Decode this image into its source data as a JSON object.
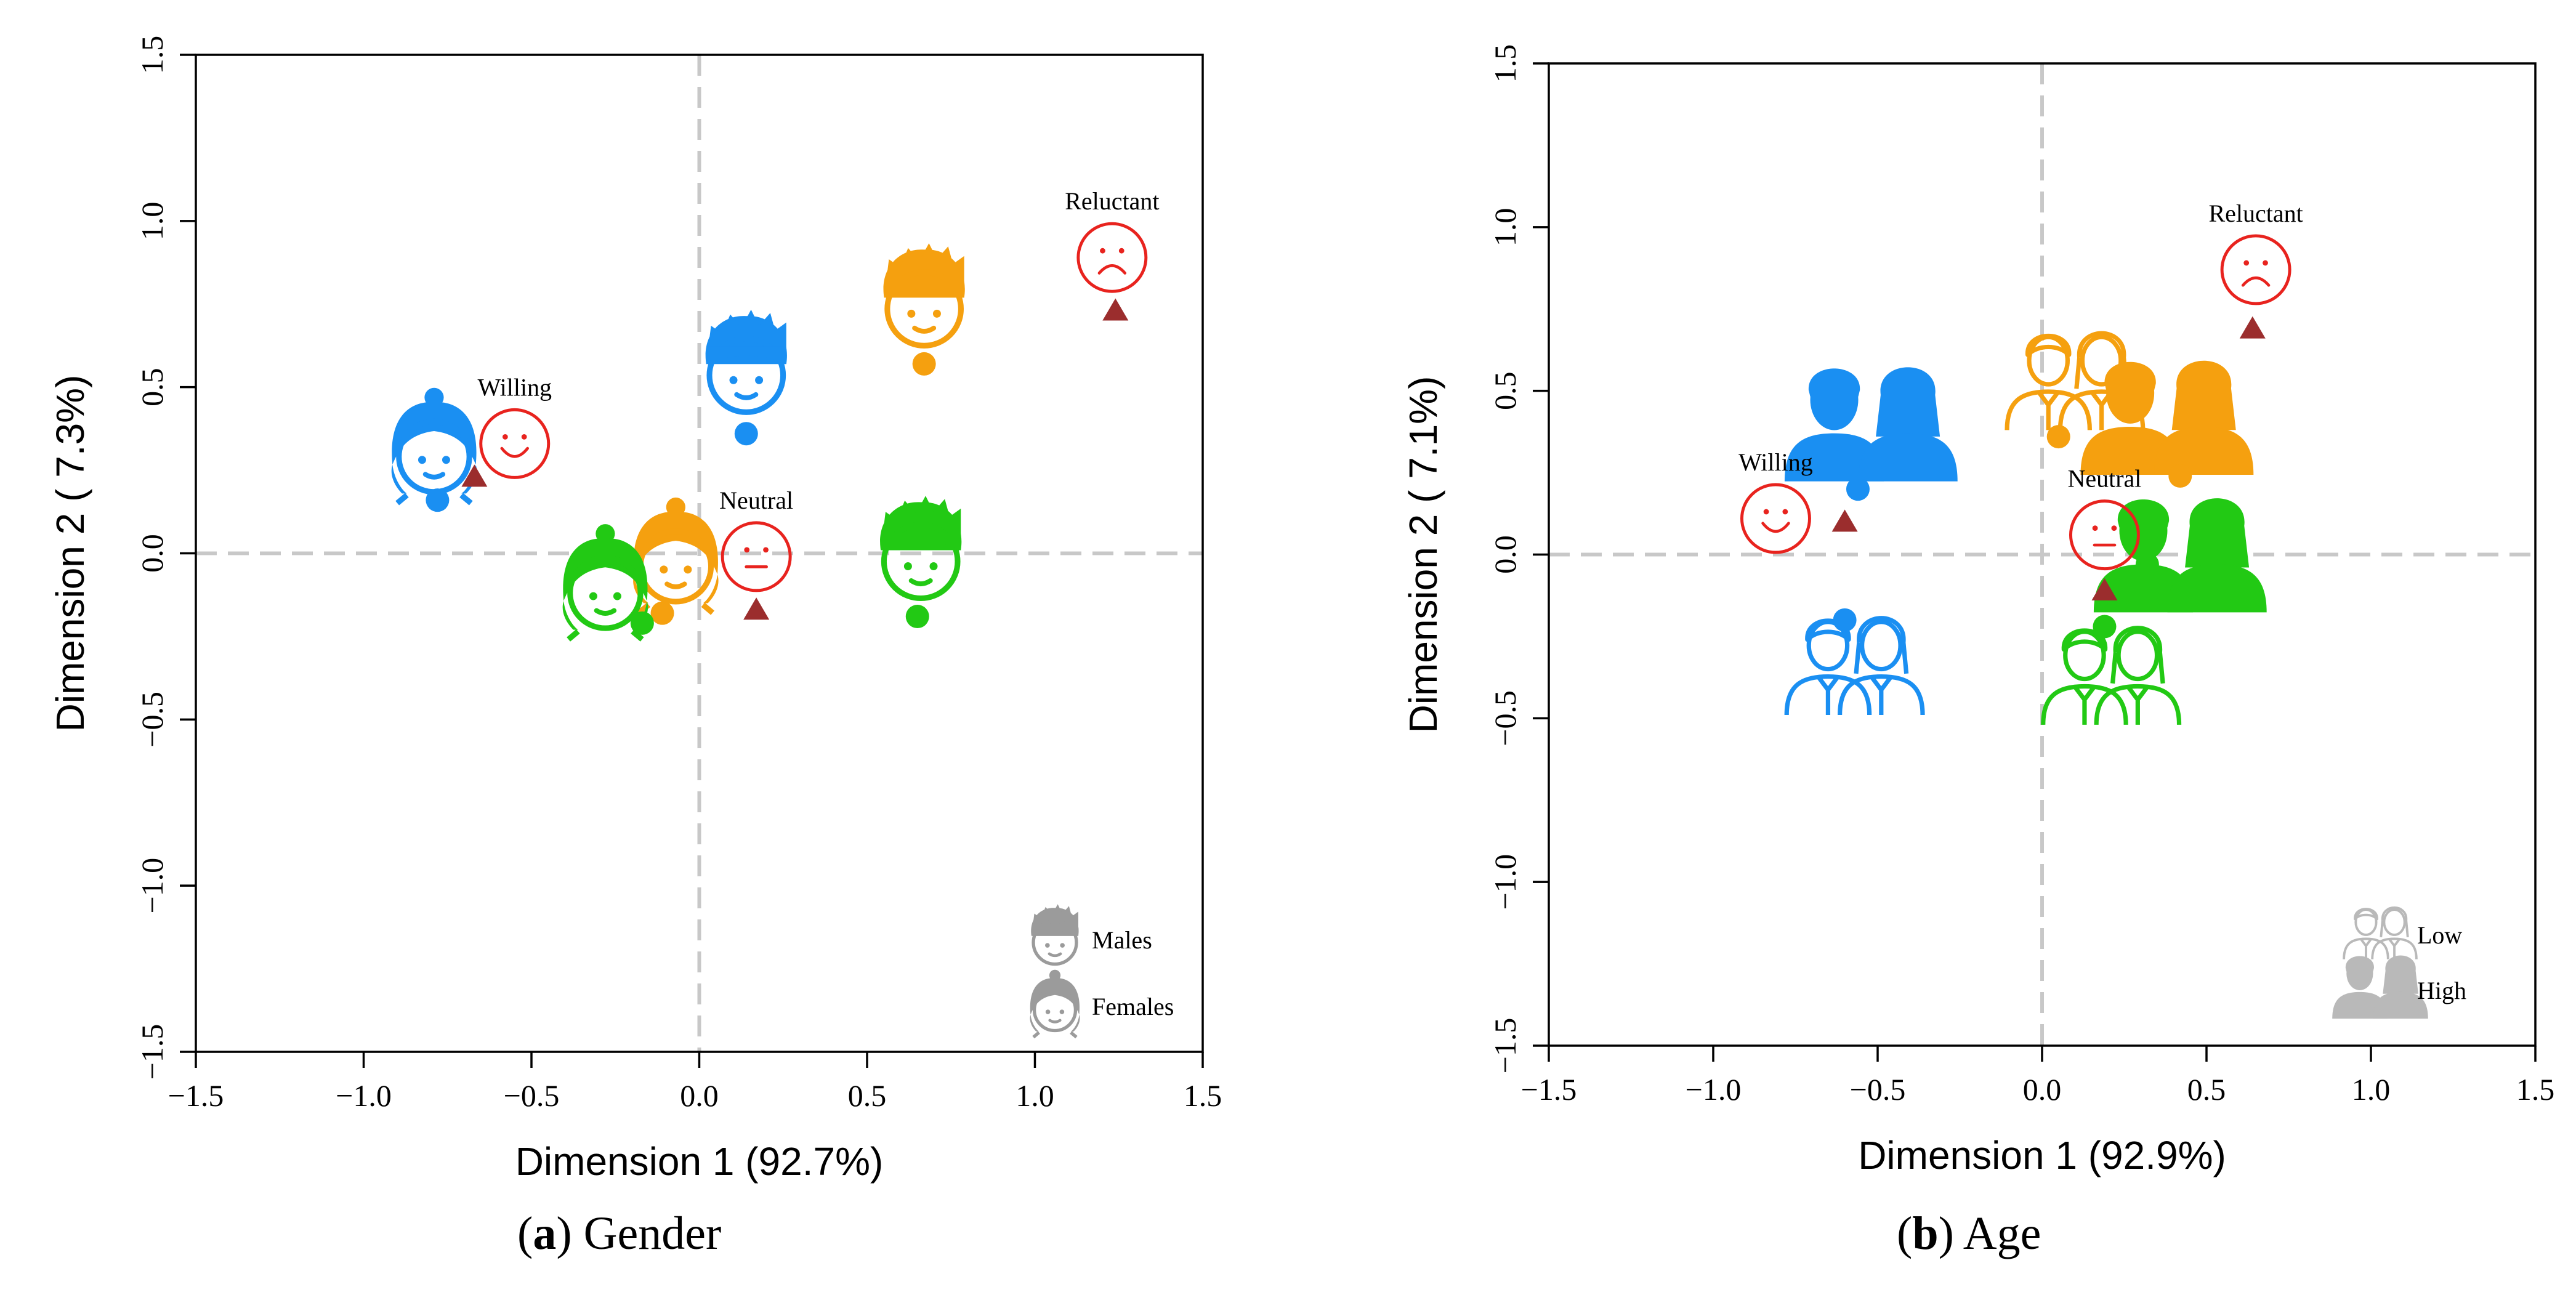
{
  "chart_data": [
    {
      "type": "scatter",
      "panel_tag": "a",
      "panel_caption": "Gender",
      "xlabel": "Dimension 1 (92.7%)",
      "ylabel": "Dimension 2 ( 7.3%)",
      "xlim": [
        -1.5,
        1.5
      ],
      "ylim": [
        -1.5,
        1.5
      ],
      "xticks": [
        -1.5,
        -1.0,
        -0.5,
        0.0,
        0.5,
        1.0,
        1.5
      ],
      "yticks": [
        -1.5,
        -1.0,
        -0.5,
        0.0,
        0.5,
        1.0,
        1.5
      ],
      "xtick_labels": [
        "−1.5",
        "−1.0",
        "−0.5",
        "0.0",
        "0.5",
        "1.0",
        "1.5"
      ],
      "ytick_labels": [
        "−1.5",
        "−1.0",
        "−0.5",
        "0.0",
        "0.5",
        "1.0",
        "1.5"
      ],
      "reference_lines": {
        "x": 0,
        "y": 0,
        "style": "dashed",
        "color": "#c8c8c8"
      },
      "attitudes": [
        {
          "label": "Willing",
          "face": "smile",
          "x": -0.55,
          "y": 0.33,
          "triangle": {
            "x": -0.67,
            "y": 0.23
          }
        },
        {
          "label": "Neutral",
          "face": "neutral",
          "x": 0.17,
          "y": -0.01,
          "triangle": {
            "x": 0.17,
            "y": -0.17
          }
        },
        {
          "label": "Reluctant",
          "face": "frown",
          "x": 1.23,
          "y": 0.89,
          "triangle": {
            "x": 1.24,
            "y": 0.73
          }
        }
      ],
      "groups": [
        {
          "color": "#1a8ff2",
          "category": "Females",
          "icon_x": -0.79,
          "icon_y": 0.31,
          "dot": {
            "x": -0.78,
            "y": 0.16
          }
        },
        {
          "color": "#1a8ff2",
          "category": "Males",
          "icon_x": 0.14,
          "icon_y": 0.55,
          "dot": {
            "x": 0.14,
            "y": 0.36
          }
        },
        {
          "color": "#f5a00f",
          "category": "Males",
          "icon_x": 0.67,
          "icon_y": 0.75,
          "dot": {
            "x": 0.67,
            "y": 0.57
          }
        },
        {
          "color": "#f5a00f",
          "category": "Females",
          "icon_x": -0.07,
          "icon_y": -0.02,
          "dot": {
            "x": -0.11,
            "y": -0.18
          }
        },
        {
          "color": "#22c914",
          "category": "Females",
          "icon_x": -0.28,
          "icon_y": -0.1,
          "dot": {
            "x": -0.17,
            "y": -0.21
          }
        },
        {
          "color": "#22c914",
          "category": "Males",
          "icon_x": 0.66,
          "icon_y": -0.01,
          "dot": {
            "x": 0.65,
            "y": -0.19
          }
        }
      ],
      "legend": {
        "position": "bottom-right",
        "entries": [
          {
            "label": "Males",
            "icon": "male-head"
          },
          {
            "label": "Females",
            "icon": "female-head"
          }
        ]
      }
    },
    {
      "type": "scatter",
      "panel_tag": "b",
      "panel_caption": "Age",
      "xlabel": "Dimension 1 (92.9%)",
      "ylabel": "Dimension 2 ( 7.1%)",
      "xlim": [
        -1.5,
        1.5
      ],
      "ylim": [
        -1.5,
        1.5
      ],
      "xticks": [
        -1.5,
        -1.0,
        -0.5,
        0.0,
        0.5,
        1.0,
        1.5
      ],
      "yticks": [
        -1.5,
        -1.0,
        -0.5,
        0.0,
        0.5,
        1.0,
        1.5
      ],
      "xtick_labels": [
        "−1.5",
        "−1.0",
        "−0.5",
        "0.0",
        "0.5",
        "1.0",
        "1.5"
      ],
      "ytick_labels": [
        "−1.5",
        "−1.0",
        "−0.5",
        "0.0",
        "0.5",
        "1.0",
        "1.5"
      ],
      "reference_lines": {
        "x": 0,
        "y": 0,
        "style": "dashed",
        "color": "#c8c8c8"
      },
      "attitudes": [
        {
          "label": "Willing",
          "face": "smile",
          "x": -0.81,
          "y": 0.11,
          "triangle": {
            "x": -0.6,
            "y": 0.1
          }
        },
        {
          "label": "Neutral",
          "face": "neutral",
          "x": 0.19,
          "y": 0.06,
          "triangle": {
            "x": 0.19,
            "y": -0.11
          }
        },
        {
          "label": "Reluctant",
          "face": "frown",
          "x": 0.65,
          "y": 0.87,
          "triangle": {
            "x": 0.64,
            "y": 0.69
          }
        }
      ],
      "groups": [
        {
          "color": "#1a8ff2",
          "category": "High",
          "icon_x": -0.52,
          "icon_y": 0.38,
          "dot": {
            "x": -0.56,
            "y": 0.2
          }
        },
        {
          "color": "#1a8ff2",
          "category": "Low",
          "icon_x": -0.57,
          "icon_y": -0.35,
          "dot": {
            "x": -0.6,
            "y": -0.2
          }
        },
        {
          "color": "#f5a00f",
          "category": "Low",
          "icon_x": 0.1,
          "icon_y": 0.52,
          "dot": {
            "x": 0.05,
            "y": 0.36
          }
        },
        {
          "color": "#f5a00f",
          "category": "High",
          "icon_x": 0.38,
          "icon_y": 0.4,
          "dot": {
            "x": 0.42,
            "y": 0.24
          }
        },
        {
          "color": "#22c914",
          "category": "High",
          "icon_x": 0.42,
          "icon_y": -0.02,
          "dot": {
            "x": 0.32,
            "y": -0.03
          }
        },
        {
          "color": "#22c914",
          "category": "Low",
          "icon_x": 0.21,
          "icon_y": -0.38,
          "dot": {
            "x": 0.19,
            "y": -0.22
          }
        }
      ],
      "legend": {
        "position": "bottom-right",
        "entries": [
          {
            "label": "Low",
            "icon": "outline-pair"
          },
          {
            "label": "High",
            "icon": "filled-pair"
          }
        ]
      }
    }
  ]
}
